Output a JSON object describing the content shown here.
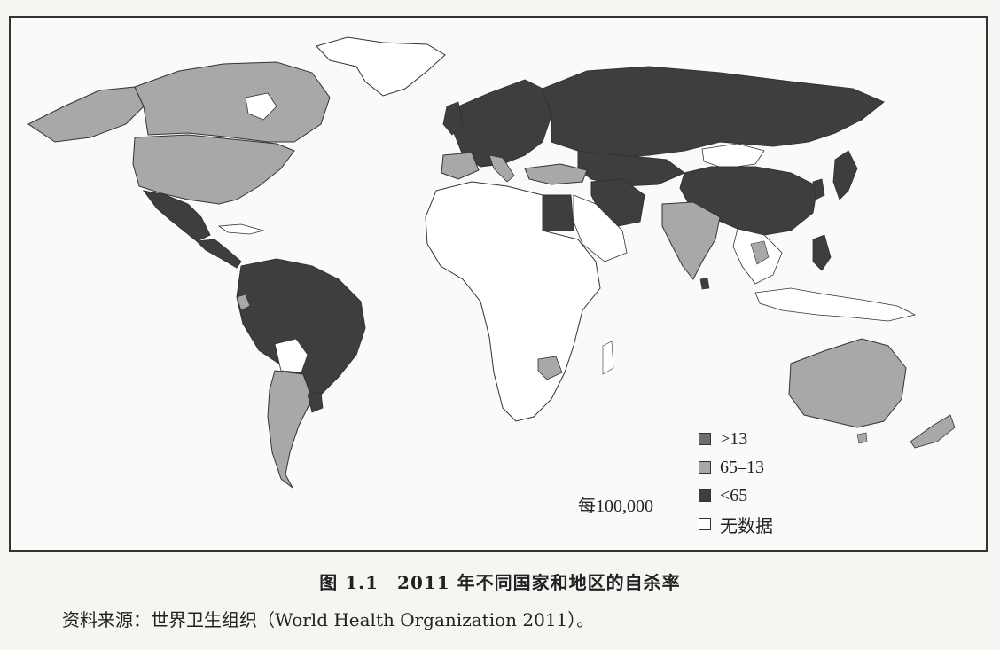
{
  "legend": {
    "unit": "每100,000",
    "items": [
      {
        "label": ">13",
        "color": "#6e6e6e"
      },
      {
        "label": "65–13",
        "color": "#a8a8a8"
      },
      {
        "label": "<65",
        "color": "#3e3e3e"
      },
      {
        "label": "无数据",
        "color": "#ffffff"
      }
    ]
  },
  "caption": "图 1.1　2011 年不同国家和地区的自杀率",
  "source": "资料来源：世界卫生组织（World Health Organization 2011）。",
  "colors": {
    "dark": "#555555",
    "medium": "#a8a8a8",
    "darkest": "#3e3e3e",
    "none": "#ffffff",
    "outline": "#333333"
  }
}
